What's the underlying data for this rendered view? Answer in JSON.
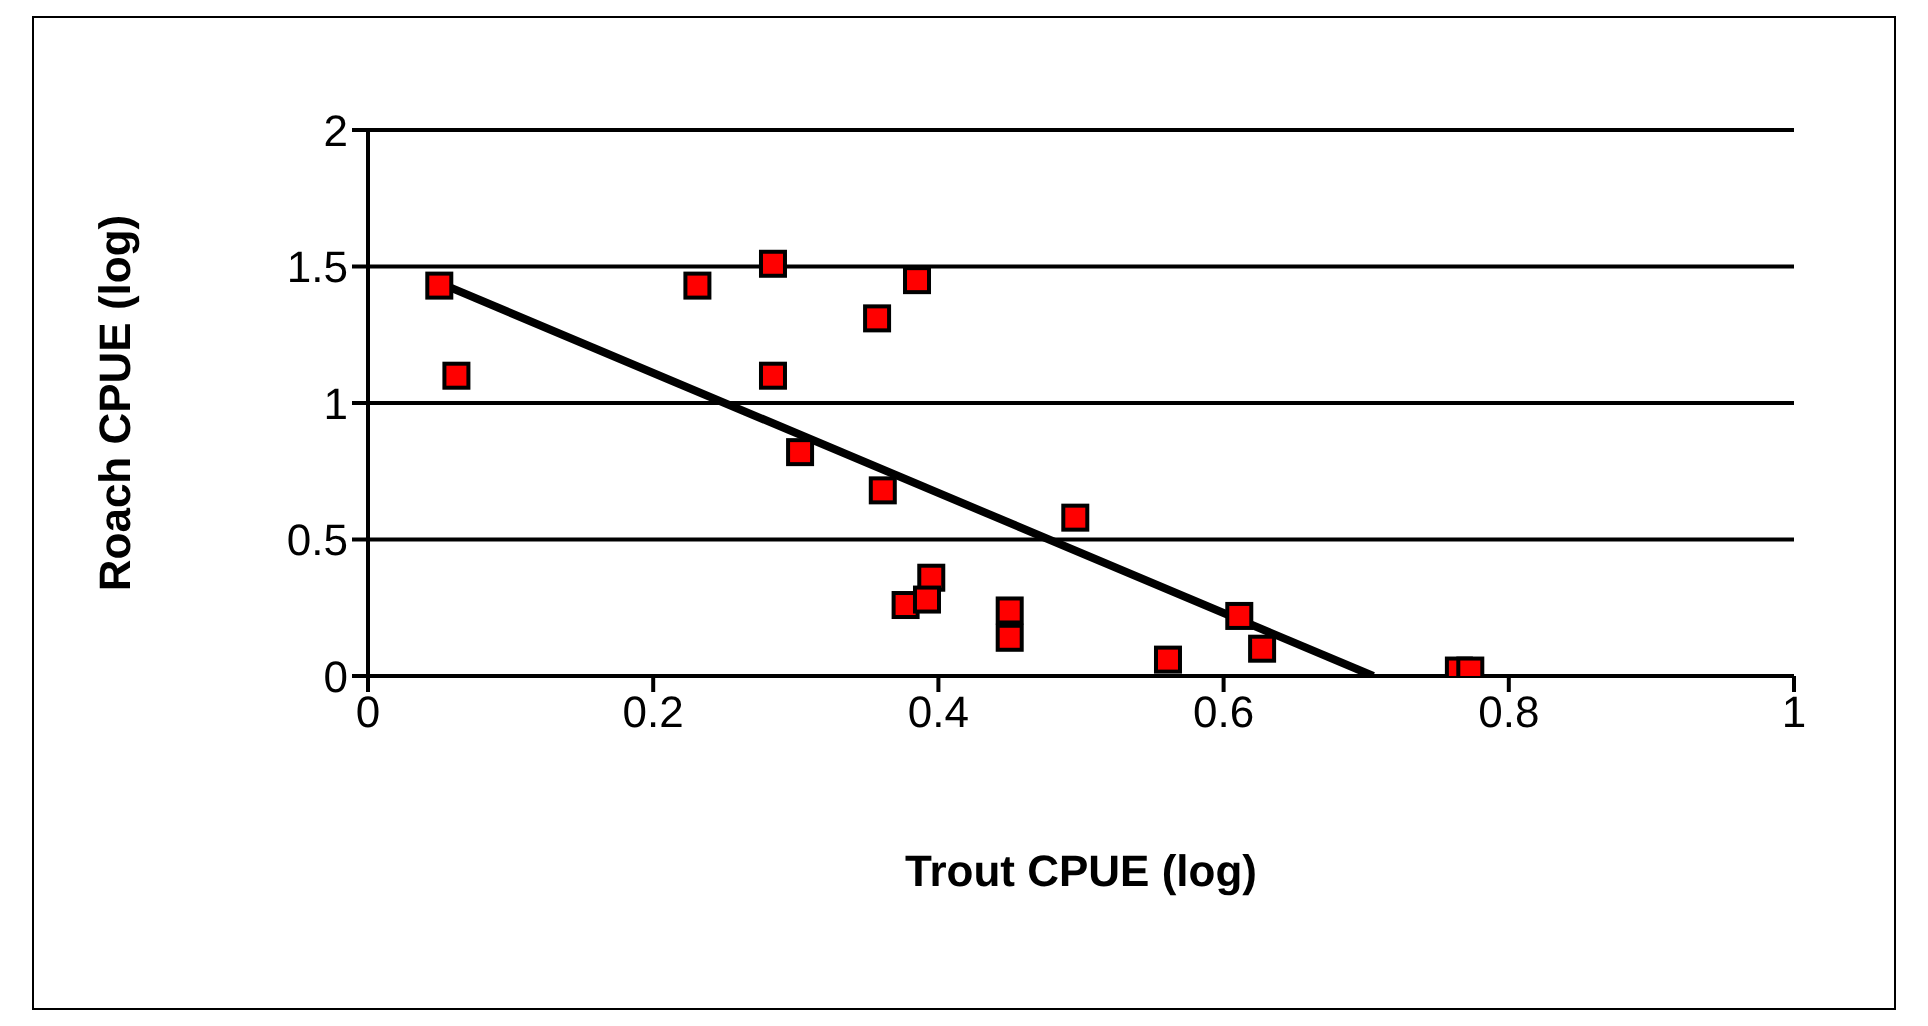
{
  "chart_data": {
    "type": "scatter",
    "xlabel": "Trout CPUE (log)",
    "ylabel": "Roach CPUE (log)",
    "xlim": [
      0,
      1
    ],
    "xticks": [
      0,
      0.2,
      0.4,
      0.6,
      0.8,
      1
    ],
    "ylim": [
      0,
      2
    ],
    "yticks": [
      0,
      0.5,
      1,
      1.5,
      2
    ],
    "grid": "y",
    "marker": "square",
    "series": [
      {
        "color": "#ff0000",
        "x": [
          0.05,
          0.062,
          0.231,
          0.284,
          0.284,
          0.357,
          0.385,
          0.303,
          0.361,
          0.496,
          0.395,
          0.377,
          0.392,
          0.45,
          0.45,
          0.561,
          0.611,
          0.627,
          0.765,
          0.773
        ],
        "values": [
          1.43,
          1.1,
          1.43,
          1.51,
          1.1,
          1.31,
          1.45,
          0.82,
          0.68,
          0.58,
          0.36,
          0.26,
          0.28,
          0.24,
          0.14,
          0.06,
          0.22,
          0.1,
          0.02,
          0.02
        ]
      },
      {
        "type": "line",
        "color": "#000000",
        "marker": "none",
        "x": [
          0.05,
          0.705
        ],
        "values": [
          1.44,
          0
        ]
      }
    ]
  }
}
